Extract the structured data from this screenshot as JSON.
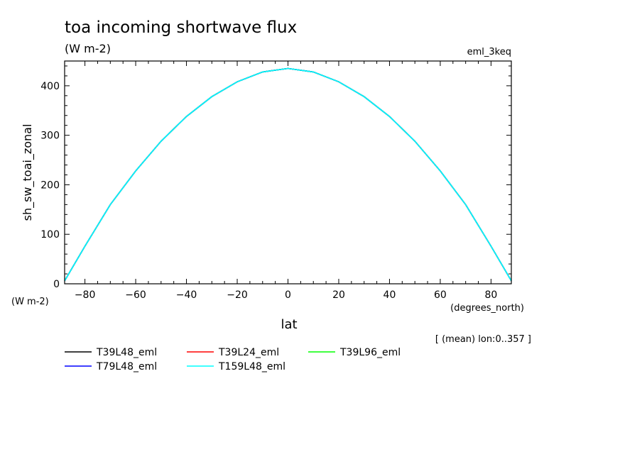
{
  "chart_data": {
    "type": "line",
    "title": "toa incoming shortwave flux",
    "units": "(W m-2)",
    "experiment": "eml_3keq",
    "xlabel": "lat",
    "xunits": "(degrees_north)",
    "ylabel": "sh_sw_toai_zonal",
    "yunits": "(W m-2)",
    "note": "[ (mean) lon:0..357 ]",
    "xlim": [
      -88,
      88
    ],
    "ylim": [
      0,
      450
    ],
    "xticks": [
      -80,
      -60,
      -40,
      -20,
      0,
      20,
      40,
      60,
      80
    ],
    "yticks": [
      0,
      100,
      200,
      300,
      400
    ],
    "grid": false,
    "legend_position": "bottom",
    "x": [
      -88,
      -80,
      -70,
      -60,
      -50,
      -40,
      -30,
      -20,
      -10,
      0,
      10,
      20,
      30,
      40,
      50,
      60,
      70,
      80,
      88
    ],
    "series": [
      {
        "name": "T39L48_eml",
        "color": "#000000",
        "values": [
          6,
          76,
          160,
          228,
          288,
          338,
          378,
          408,
          428,
          435,
          428,
          408,
          378,
          338,
          288,
          228,
          160,
          76,
          6
        ]
      },
      {
        "name": "T39L24_eml",
        "color": "#ff0000",
        "values": [
          6,
          76,
          160,
          228,
          288,
          338,
          378,
          408,
          428,
          435,
          428,
          408,
          378,
          338,
          288,
          228,
          160,
          76,
          6
        ]
      },
      {
        "name": "T39L96_eml",
        "color": "#00ff00",
        "values": [
          6,
          76,
          160,
          228,
          288,
          338,
          378,
          408,
          428,
          435,
          428,
          408,
          378,
          338,
          288,
          228,
          160,
          76,
          6
        ]
      },
      {
        "name": "T79L48_eml",
        "color": "#0000ff",
        "values": [
          6,
          76,
          160,
          228,
          288,
          338,
          378,
          408,
          428,
          435,
          428,
          408,
          378,
          338,
          288,
          228,
          160,
          76,
          6
        ]
      },
      {
        "name": "T159L48_eml",
        "color": "#00ffff",
        "values": [
          6,
          76,
          160,
          228,
          288,
          338,
          378,
          408,
          428,
          435,
          428,
          408,
          378,
          338,
          288,
          228,
          160,
          76,
          6
        ]
      }
    ]
  }
}
